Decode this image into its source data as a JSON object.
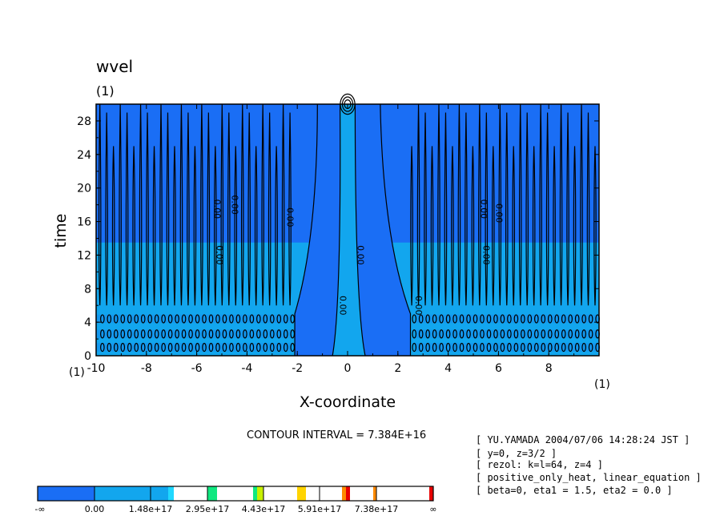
{
  "chart_data": {
    "type": "heatmap",
    "title": "wvel",
    "title_unit": "(1)",
    "xlabel": "X-coordinate",
    "x_unit": "(1)",
    "ylabel": "time",
    "y_unit": "(1)",
    "xlim": [
      -10,
      10
    ],
    "ylim": [
      0,
      30
    ],
    "x_ticks": [
      "-10",
      "-8",
      "-6",
      "-4",
      "-2",
      "0",
      "2",
      "4",
      "6",
      "8"
    ],
    "y_ticks": [
      "0",
      "4",
      "8",
      "12",
      "16",
      "20",
      "24",
      "28"
    ],
    "contour_interval_text": "CONTOUR INTERVAL = 7.384E+16",
    "contour_labels": [
      {
        "text": "0.00",
        "x": -5.3,
        "y": 17.5
      },
      {
        "text": "0.00",
        "x": -4.6,
        "y": 18.0
      },
      {
        "text": "0.00",
        "x": -2.4,
        "y": 16.5
      },
      {
        "text": "0.00",
        "x": -5.2,
        "y": 12.0
      },
      {
        "text": "0.00",
        "x": 0.4,
        "y": 12.0
      },
      {
        "text": "0.00",
        "x": -0.3,
        "y": 6.0
      },
      {
        "text": "0.00",
        "x": 5.3,
        "y": 17.5
      },
      {
        "text": "0.00",
        "x": 5.9,
        "y": 17.0
      },
      {
        "text": "0.00",
        "x": 5.4,
        "y": 12.0
      },
      {
        "text": "0.00",
        "x": 2.7,
        "y": 6.0
      }
    ],
    "colorbar": {
      "labels": [
        "-∞",
        "0.00",
        "1.48e+17",
        "2.95e+17",
        "4.43e+17",
        "5.91e+17",
        "7.38e+17",
        "∞"
      ],
      "colors": [
        "#1a6ef5",
        "#12a6ee",
        "#20d8ff",
        "#ffffff",
        "#10e880",
        "#c8f000",
        "#ffd400",
        "#ff8a00",
        "#e80000"
      ]
    },
    "palette": {
      "dark_blue": "#1a6ef5",
      "light_blue": "#12a6ee"
    }
  },
  "info_box": [
    "[ YU.YAMADA 2004/07/06 14:28:24 JST ]",
    "[ y=0, z=3/2 ]",
    "[ rezol: k=l=64, z=4 ]",
    "[ positive_only_heat, linear_equation ]",
    "[ beta=0, eta1 = 1.5, eta2 = 0.0 ]"
  ]
}
